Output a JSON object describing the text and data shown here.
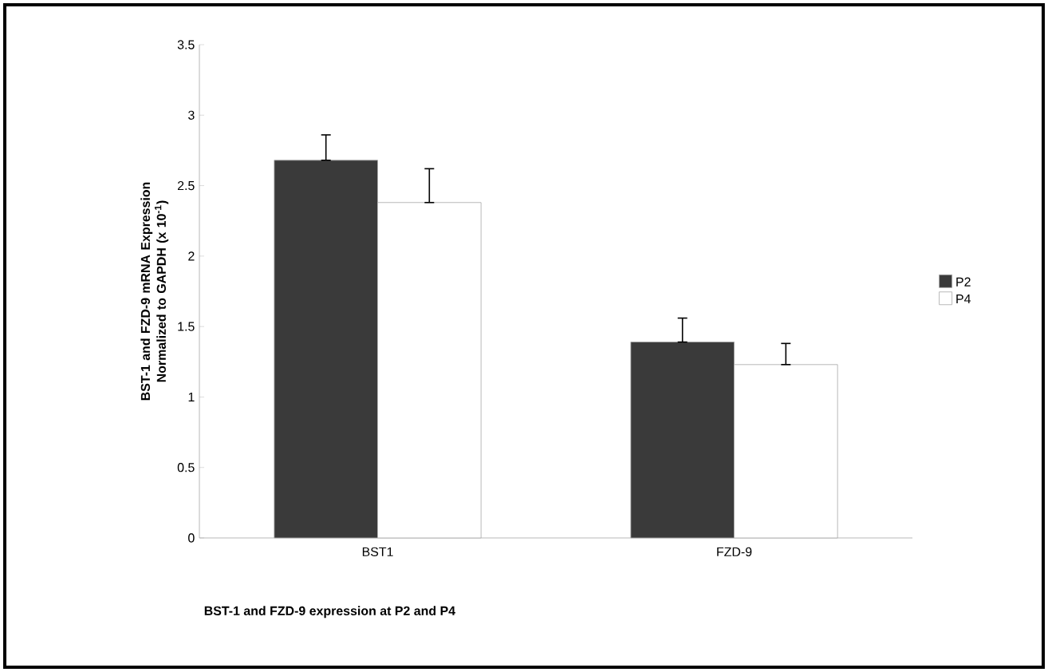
{
  "chart_data": {
    "type": "bar",
    "xlabel": "BST-1 and FZD-9 expression at P2 and P4",
    "ylabel": "BST-1 and FZD-9 mRNA Expression Normalized to GAPDH (x 10$^{-1}$)",
    "categories": [
      "BST1",
      "FZD-9"
    ],
    "series": [
      {
        "name": "P2",
        "color": "#3a3a3a",
        "values": [
          2.68,
          1.39
        ],
        "errors": [
          [
            2.68,
            2.86
          ],
          [
            1.39,
            1.56
          ]
        ]
      },
      {
        "name": "P4",
        "color": "#ffffff",
        "values": [
          2.38,
          1.23
        ],
        "errors": [
          [
            2.38,
            2.62
          ],
          [
            1.23,
            1.38
          ]
        ]
      }
    ],
    "ylim": [
      0,
      3.5
    ],
    "yticks": [
      0,
      0.5,
      1,
      1.5,
      2,
      2.5,
      3,
      3.5
    ],
    "legend": "right"
  }
}
